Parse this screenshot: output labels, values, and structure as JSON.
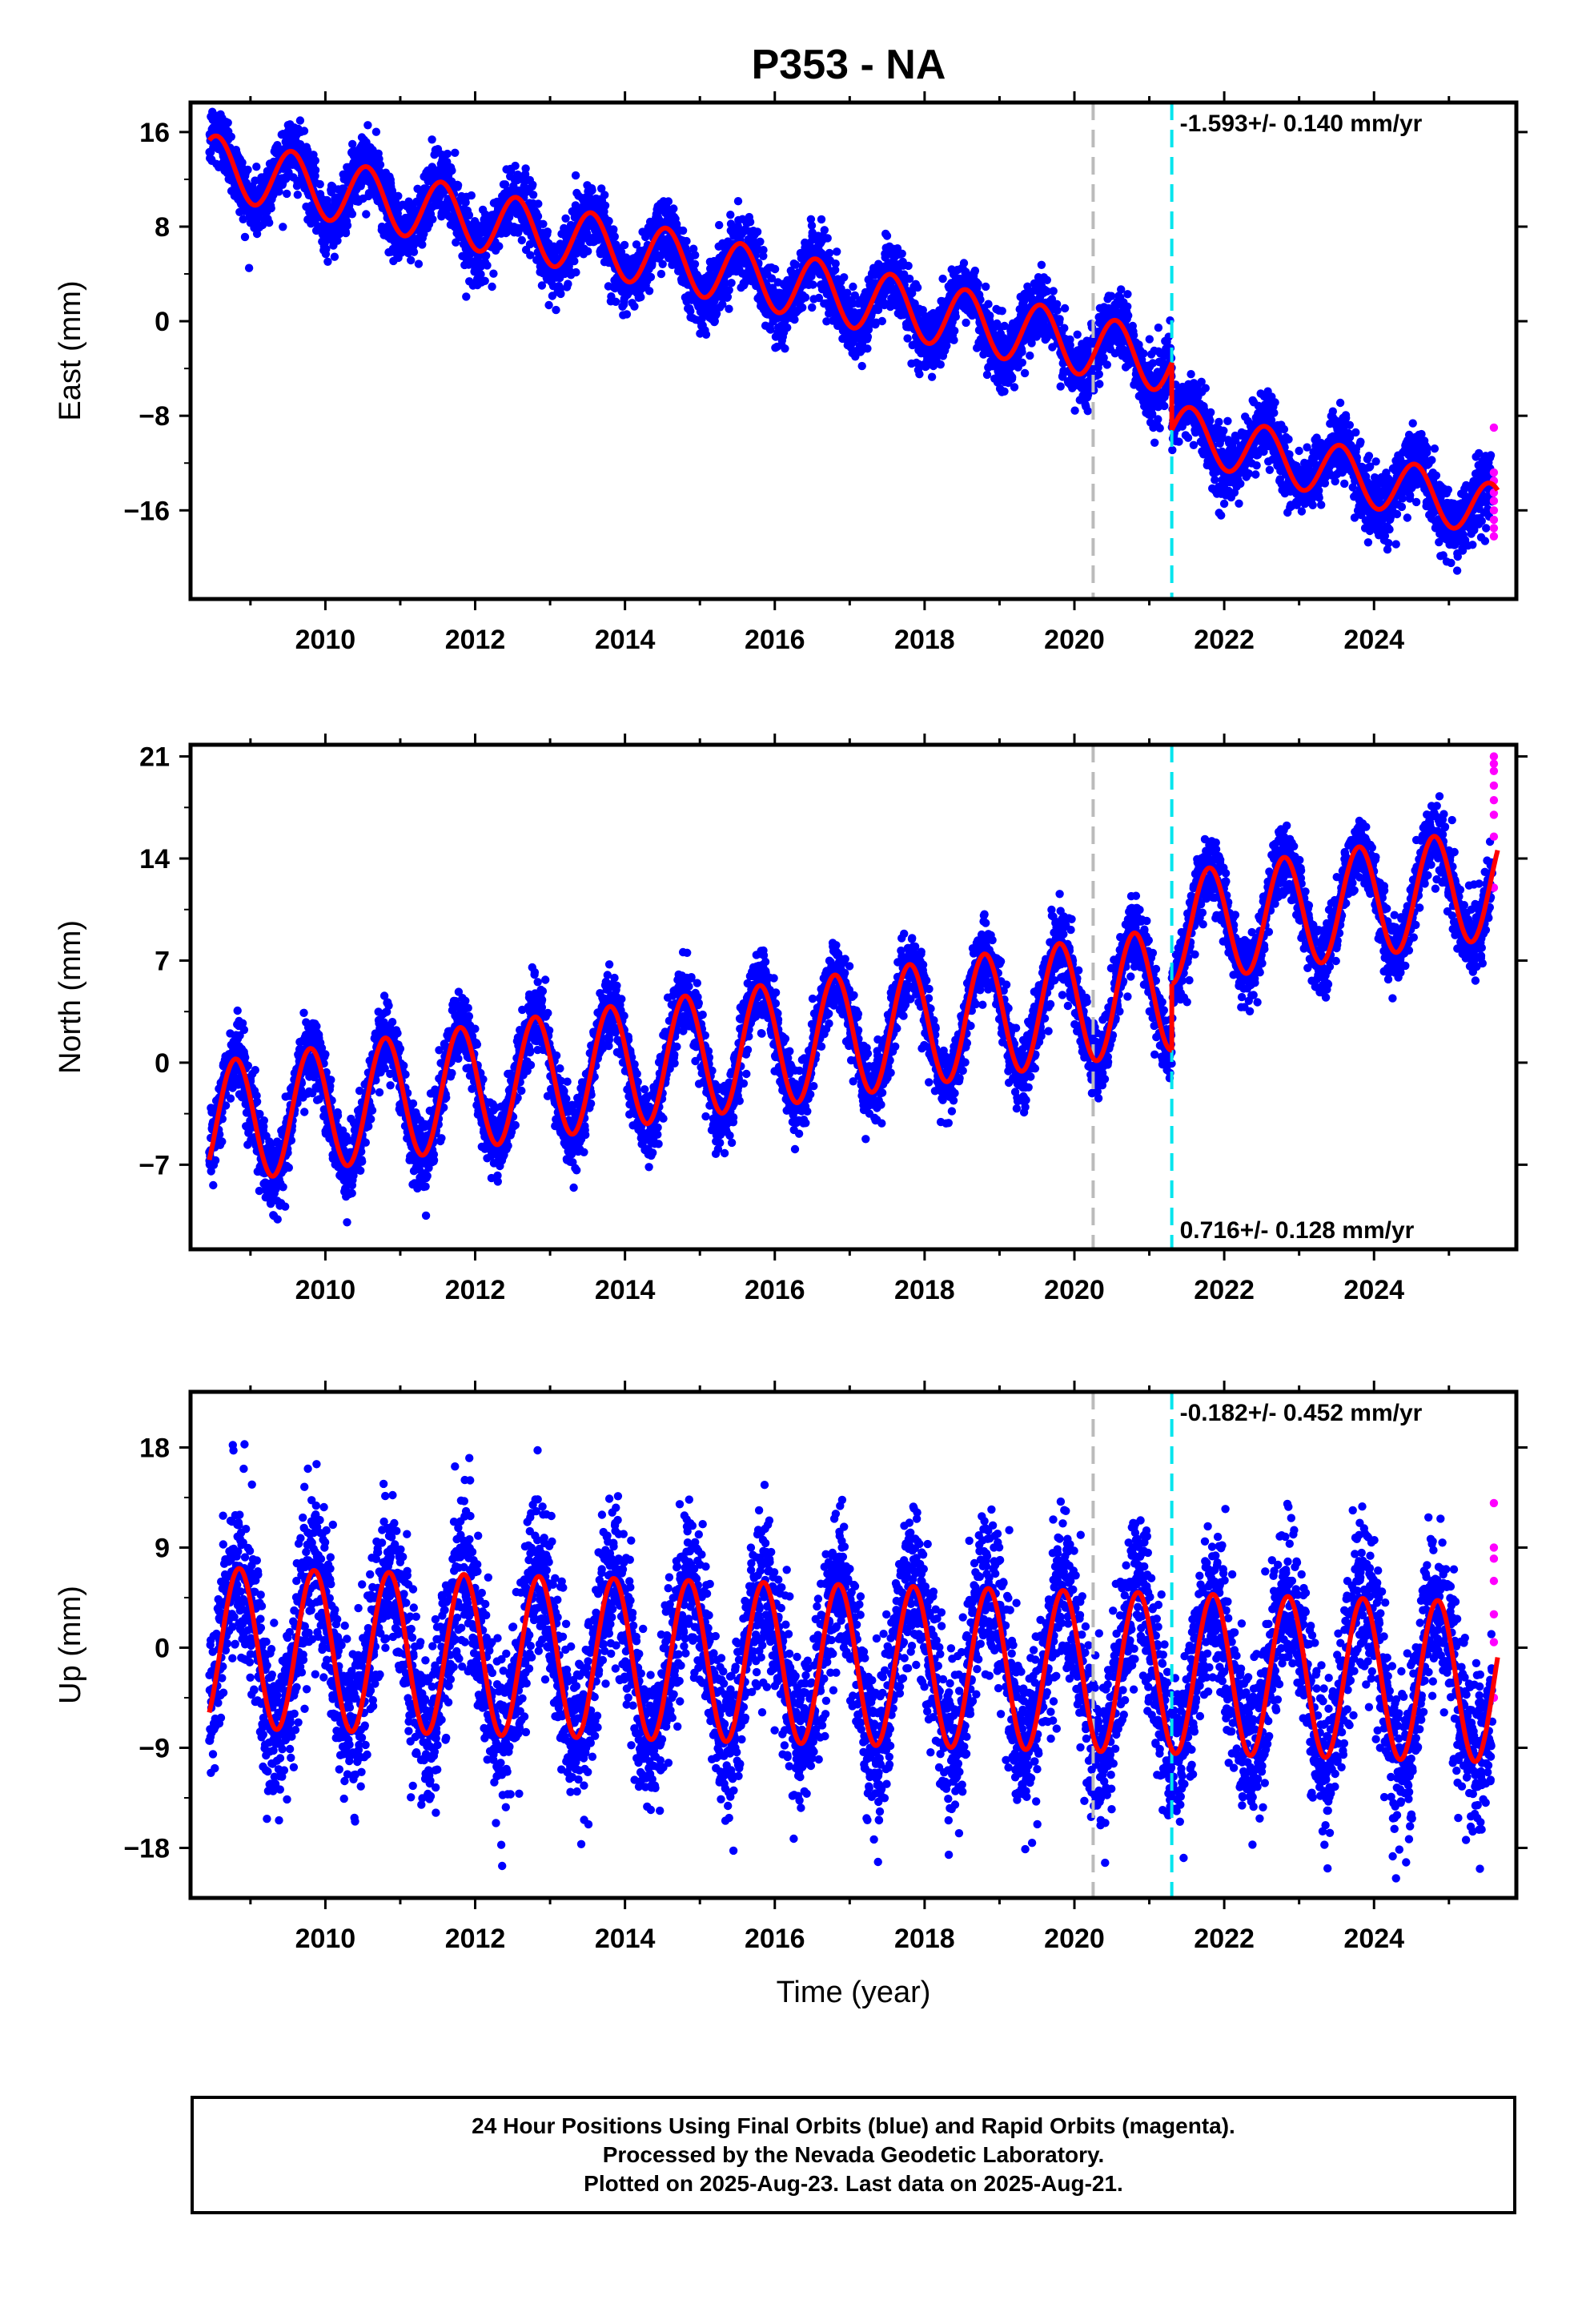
{
  "title": "P353 - NA",
  "colors": {
    "observations": "#0000ff",
    "rapid": "#ff00ff",
    "model": "#ff0000",
    "event_gray": "#bbbbbb",
    "event_cyan": "#00e5ee"
  },
  "chart_data": [
    {
      "type": "scatter",
      "ylabel": "East (mm)",
      "xlabel": "",
      "xlim": [
        2008.2,
        2025.9
      ],
      "ylim": [
        -23.5,
        18.5
      ],
      "yticks": [
        -16,
        -8,
        0,
        8,
        16
      ],
      "xticks": [
        2010,
        2012,
        2014,
        2016,
        2018,
        2020,
        2022,
        2024
      ],
      "grid": false,
      "rate_text": "-1.593+/- 0.140 mm/yr",
      "rate_position": "top-right",
      "event_lines": [
        {
          "x": 2020.25,
          "color": "gray",
          "style": "dashed"
        },
        {
          "x": 2021.3,
          "color": "cyan",
          "style": "dashed"
        }
      ],
      "model": {
        "segments": [
          {
            "start": 2008.45,
            "end": 2021.3,
            "offset": 13.2,
            "rate": -1.3,
            "amplitude": 2.6,
            "phase": 0.3
          },
          {
            "start": 2021.3,
            "end": 2025.65,
            "offset": -9.2,
            "rate": -1.6,
            "amplitude": 2.3,
            "phase": 0.3
          }
        ]
      },
      "noise": 1.4,
      "data_start": 2008.45,
      "data_end": 2025.58,
      "rapid_points": {
        "x": 2025.6,
        "values": [
          -9.0,
          -12.8,
          -13.5,
          -14.5,
          -15.2,
          -16.0,
          -16.8,
          -17.5,
          -18.2
        ]
      }
    },
    {
      "type": "scatter",
      "ylabel": "North (mm)",
      "xlabel": "",
      "xlim": [
        2008.2,
        2025.9
      ],
      "ylim": [
        -12.8,
        21.8
      ],
      "yticks": [
        -7,
        0,
        7,
        14,
        21
      ],
      "xticks": [
        2010,
        2012,
        2014,
        2016,
        2018,
        2020,
        2022,
        2024
      ],
      "grid": false,
      "rate_text": "0.716+/- 0.128 mm/yr",
      "rate_position": "bottom-right",
      "event_lines": [
        {
          "x": 2020.25,
          "color": "gray",
          "style": "dashed"
        },
        {
          "x": 2021.3,
          "color": "cyan",
          "style": "dashed"
        }
      ],
      "model": {
        "segments": [
          {
            "start": 2008.45,
            "end": 2021.3,
            "offset": -4.2,
            "rate": 0.72,
            "amplitude": 4.2,
            "phase": 0.55
          },
          {
            "start": 2021.3,
            "end": 2025.65,
            "offset": 9.2,
            "rate": 0.72,
            "amplitude": 3.8,
            "phase": 0.55
          }
        ]
      },
      "noise": 1.2,
      "data_start": 2008.45,
      "data_end": 2025.58,
      "rapid_points": {
        "x": 2025.6,
        "values": [
          12.0,
          15.5,
          17.0,
          18.0,
          19.0,
          20.0,
          20.5,
          21.0
        ]
      }
    },
    {
      "type": "scatter",
      "ylabel": "Up (mm)",
      "xlabel": "Time (year)",
      "xlim": [
        2008.2,
        2025.9
      ],
      "ylim": [
        -22.5,
        23
      ],
      "yticks": [
        -18,
        -9,
        0,
        9,
        18
      ],
      "xticks": [
        2010,
        2012,
        2014,
        2016,
        2018,
        2020,
        2022,
        2024
      ],
      "grid": false,
      "rate_text": "-0.182+/- 0.452 mm/yr",
      "rate_position": "top-right",
      "event_lines": [
        {
          "x": 2020.25,
          "color": "gray",
          "style": "dashed"
        },
        {
          "x": 2021.3,
          "color": "cyan",
          "style": "dashed"
        }
      ],
      "model": {
        "segments": [
          {
            "start": 2008.45,
            "end": 2025.65,
            "offset": 0.0,
            "rate": -0.18,
            "amplitude": 7.2,
            "phase": 0.6
          }
        ]
      },
      "noise": 3.6,
      "data_start": 2008.45,
      "data_end": 2025.58,
      "rapid_points": {
        "x": 2025.6,
        "values": [
          -4.5,
          0.5,
          3.0,
          6.0,
          8.0,
          9.0,
          13.0
        ]
      }
    }
  ],
  "footer": {
    "line1": "24 Hour Positions Using Final Orbits (blue) and Rapid Orbits (magenta).",
    "line2": "Processed by the Nevada Geodetic Laboratory.",
    "line3": "Plotted on 2025-Aug-23. Last data on 2025-Aug-21."
  }
}
